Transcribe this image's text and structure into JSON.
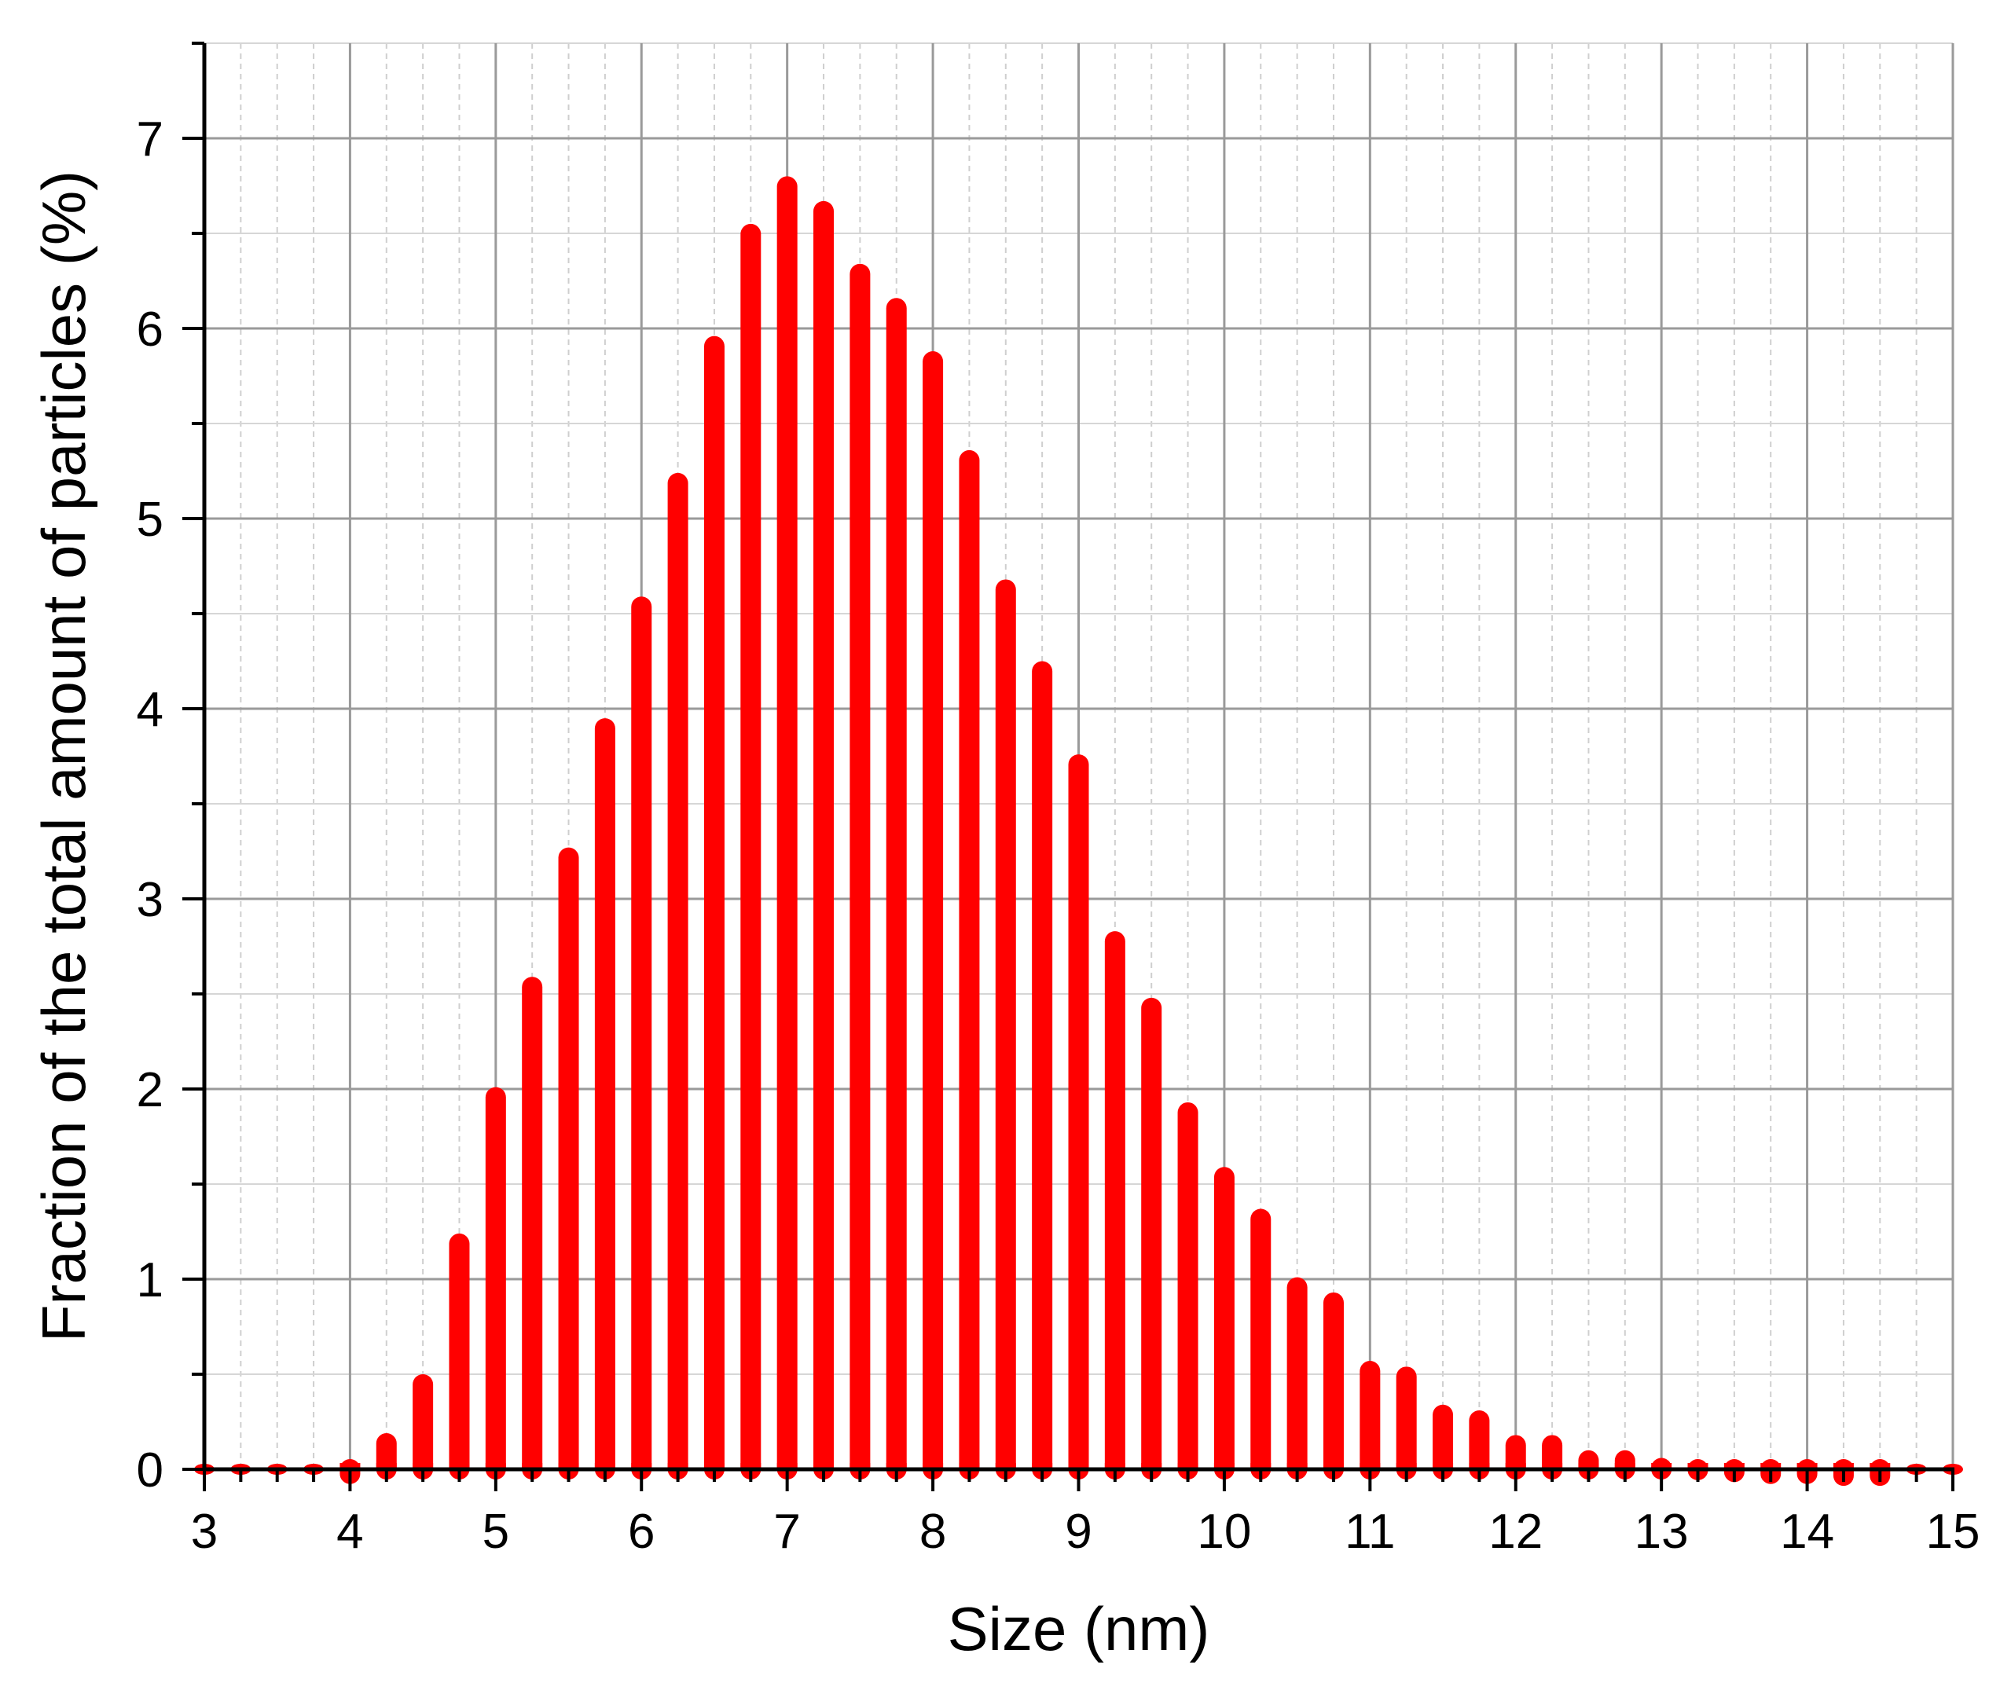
{
  "chart_data": {
    "type": "bar",
    "title": "",
    "xlabel": "Size (nm)",
    "ylabel": "Fraction of the total amount of particles (%)",
    "xlim": [
      3,
      15
    ],
    "ylim": [
      0,
      7.5
    ],
    "x_ticks": [
      "3",
      "4",
      "5",
      "6",
      "7",
      "8",
      "9",
      "10",
      "11",
      "12",
      "13",
      "14",
      "15"
    ],
    "y_ticks": [
      "0",
      "1",
      "2",
      "3",
      "4",
      "5",
      "6",
      "7"
    ],
    "grid": true,
    "legend": "none",
    "bar_color": "#ff0000",
    "x": [
      3.0,
      3.25,
      3.5,
      3.75,
      4.0,
      4.25,
      4.5,
      4.75,
      5.0,
      5.25,
      5.5,
      5.75,
      6.0,
      6.25,
      6.5,
      6.75,
      7.0,
      7.25,
      7.5,
      7.75,
      8.0,
      8.25,
      8.5,
      8.75,
      9.0,
      9.25,
      9.5,
      9.75,
      10.0,
      10.25,
      10.5,
      10.75,
      11.0,
      11.25,
      11.5,
      11.75,
      12.0,
      12.25,
      12.5,
      12.75,
      13.0,
      13.25,
      13.5,
      13.75,
      14.0,
      14.25,
      14.5,
      14.75,
      15.0
    ],
    "values": [
      0.0,
      0.0,
      0.0,
      0.0,
      0.03,
      0.19,
      0.5,
      1.24,
      2.01,
      2.59,
      3.27,
      3.95,
      4.59,
      5.24,
      5.96,
      6.55,
      6.8,
      6.67,
      6.34,
      6.16,
      5.88,
      5.36,
      4.68,
      4.25,
      3.76,
      2.83,
      2.48,
      1.93,
      1.59,
      1.37,
      1.01,
      0.93,
      0.57,
      0.54,
      0.34,
      0.31,
      0.18,
      0.18,
      0.1,
      0.1,
      0.06,
      0.05,
      0.04,
      0.03,
      0.03,
      0.02,
      0.02,
      0.0,
      0.0
    ]
  }
}
